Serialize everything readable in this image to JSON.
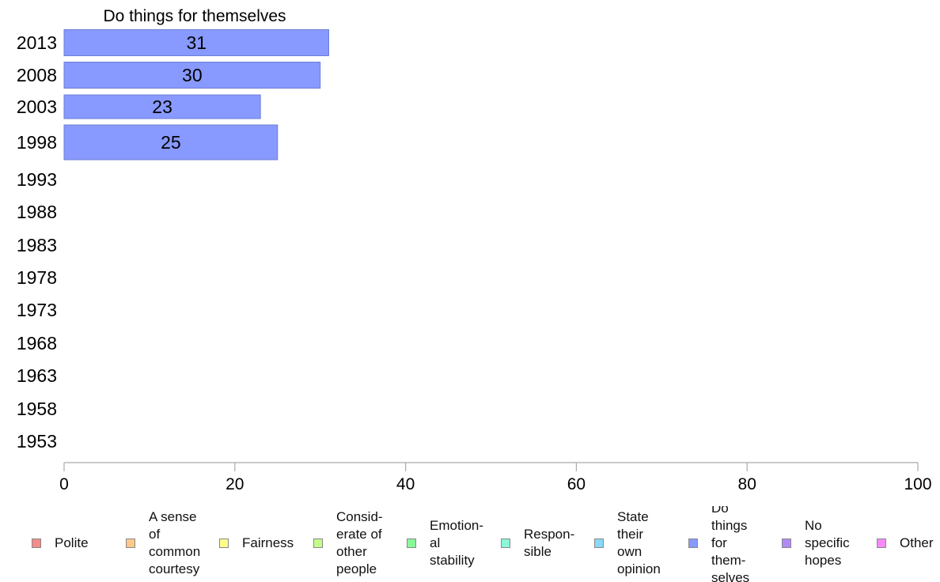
{
  "chart_data": {
    "type": "bar",
    "orientation": "horizontal",
    "title": "Do things for themselves",
    "categories": [
      "2013",
      "2008",
      "2003",
      "1998",
      "1993",
      "1988",
      "1983",
      "1978",
      "1973",
      "1968",
      "1963",
      "1958",
      "1953"
    ],
    "series": [
      {
        "name": "Do things for themselves",
        "values": [
          31,
          30,
          23,
          25,
          null,
          null,
          null,
          null,
          null,
          null,
          null,
          null,
          null
        ]
      }
    ],
    "data_labels": [
      "31",
      "30",
      "23",
      "25",
      "",
      "",
      "",
      "",
      "",
      "",
      "",
      "",
      ""
    ],
    "xlim": [
      0,
      100
    ],
    "xticks": [
      "0",
      "20",
      "40",
      "60",
      "80",
      "100"
    ],
    "grid": false,
    "bar_color": "#8899ff",
    "legend_position": "bottom"
  },
  "legend": [
    {
      "label": "Polite",
      "color": "#f58b8b"
    },
    {
      "label": "A sense\nof\ncommon\ncourtesy",
      "color": "#fbc98a"
    },
    {
      "label": "Fairness",
      "color": "#fdfd8a"
    },
    {
      "label": "Consid-\nerate of\nother\npeople",
      "color": "#c4fc8a"
    },
    {
      "label": "Emotion-\nal\nstability",
      "color": "#8af79a"
    },
    {
      "label": "Respon-\nsible",
      "color": "#8af7d8"
    },
    {
      "label": "State\ntheir\nown\nopinion",
      "color": "#8ad8f7"
    },
    {
      "label": "Do\nthings\nfor\nthem-\nselves",
      "color": "#8899ff"
    },
    {
      "label": "No\nspecific\nhopes",
      "color": "#b08af7"
    },
    {
      "label": "Other",
      "color": "#f78af7"
    }
  ]
}
